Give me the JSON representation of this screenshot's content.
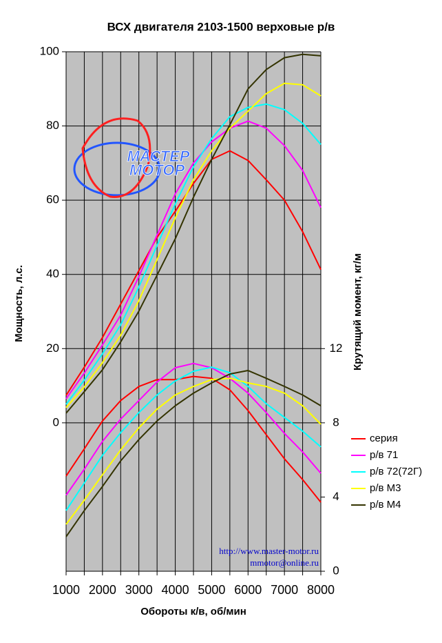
{
  "chart_data": {
    "type": "line",
    "title": "ВСХ двигателя 2103-1500 верховые р/в",
    "x_label": "Обороты к/в, об/мин",
    "y_label": "Мощность, л.с.",
    "y2_label": "Крутящий момент, кг/м",
    "annotations": [
      "http://www.master-motor.ru",
      "mmotor@online.ru"
    ],
    "logo": [
      "МАСТЕР",
      "МОТОР"
    ],
    "x": [
      1000,
      1500,
      2000,
      2500,
      3000,
      3500,
      4000,
      4500,
      5000,
      5500,
      6000,
      6500,
      7000,
      7500,
      8000
    ],
    "xlim": [
      1000,
      8000
    ],
    "xticks": [
      1000,
      2000,
      3000,
      4000,
      5000,
      6000,
      7000,
      8000
    ],
    "x_minor_ticks": [
      1500,
      2500,
      3500,
      4500,
      5500,
      6500,
      7500
    ],
    "ylim": [
      -40,
      100
    ],
    "yticks": [
      0,
      20,
      40,
      60,
      80,
      100
    ],
    "y2lim": [
      0,
      28
    ],
    "y2ticks": [
      0,
      4,
      8,
      12
    ],
    "grid": true,
    "legend": "right",
    "series": [
      {
        "name": "серия",
        "color": "#ff0000",
        "values": [
          7.4,
          15,
          23,
          32,
          41,
          50,
          57,
          64.5,
          71,
          73.3,
          70.7,
          65.5,
          60,
          51.5,
          41.3
        ],
        "y2_values": [
          5.13,
          6.6,
          8.1,
          9.2,
          9.96,
          10.33,
          10.33,
          10.5,
          10.4,
          9.78,
          8.66,
          7.36,
          6.06,
          4.94,
          3.72
        ]
      },
      {
        "name": "р/в 71",
        "color": "#ff00ff",
        "values": [
          6.5,
          13.4,
          21,
          29,
          39.4,
          50.6,
          61.7,
          70,
          75.7,
          79.4,
          81.3,
          79.4,
          74.7,
          68,
          58
        ],
        "y2_values": [
          4.1,
          5.5,
          7,
          8.2,
          9.2,
          10.2,
          10.97,
          11.2,
          10.97,
          10.4,
          9.6,
          8.55,
          7.43,
          6.43,
          5.28
        ]
      },
      {
        "name": "р/в 72(72Г)",
        "color": "#00ffff",
        "values": [
          5,
          11.5,
          18.6,
          26.4,
          36.6,
          47.8,
          59,
          69,
          76.6,
          82.5,
          85,
          85.9,
          84.4,
          80.7,
          75
        ],
        "y2_values": [
          3.27,
          4.76,
          6.25,
          7.47,
          8.55,
          9.5,
          10.26,
          10.78,
          11,
          10.7,
          9.96,
          9.03,
          8.29,
          7.55,
          6.7
        ]
      },
      {
        "name": "р/в М3",
        "color": "#ffff00",
        "values": [
          4.1,
          9.7,
          16.2,
          23.6,
          32.9,
          44,
          55.2,
          65.5,
          73.3,
          79.4,
          84,
          88.7,
          91.5,
          91.1,
          88.1
        ],
        "y2_values": [
          2.53,
          3.83,
          5.2,
          6.54,
          7.73,
          8.74,
          9.5,
          9.96,
          10.33,
          10.4,
          10.15,
          9.96,
          9.6,
          8.92,
          7.92
        ]
      },
      {
        "name": "р/в М4",
        "color": "#333300",
        "values": [
          2.6,
          8.4,
          14.3,
          21.8,
          30.1,
          39.8,
          49.6,
          60.8,
          71,
          80.3,
          90,
          95.2,
          98.4,
          99.3,
          98.9
        ],
        "y2_values": [
          1.86,
          3.27,
          4.57,
          5.95,
          7.1,
          8.1,
          8.92,
          9.6,
          10.15,
          10.63,
          10.82,
          10.4,
          9.96,
          9.5,
          8.92
        ]
      }
    ]
  }
}
